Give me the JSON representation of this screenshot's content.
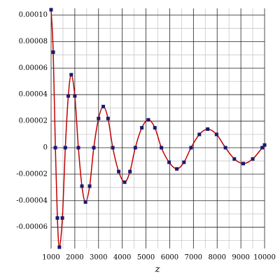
{
  "chart_data": {
    "type": "line",
    "x_label": "z",
    "x": [
      1000,
      1090,
      1180,
      1265,
      1350,
      1475,
      1600,
      1725,
      1850,
      2000,
      2150,
      2300,
      2450,
      2625,
      2800,
      3000,
      3200,
      3400,
      3600,
      3850,
      4100,
      4325,
      4550,
      4825,
      5100,
      5375,
      5650,
      5975,
      6300,
      6600,
      6900,
      7250,
      7600,
      7975,
      8350,
      8725,
      9100,
      9500,
      9900,
      10000
    ],
    "series": [
      {
        "color": "#c00000",
        "marker_color": "#1a1a6e",
        "values": [
          0.000104,
          7.2e-05,
          0,
          -5.3e-05,
          -7.5e-05,
          -5.3e-05,
          0,
          3.9e-05,
          5.5e-05,
          3.9e-05,
          0,
          -2.9e-05,
          -4.1e-05,
          -2.9e-05,
          0,
          2.2e-05,
          3.1e-05,
          2.2e-05,
          0,
          -1.8e-05,
          -2.6e-05,
          -1.8e-05,
          0,
          1.5e-05,
          2.1e-05,
          1.5e-05,
          0,
          -1.1e-05,
          -1.6e-05,
          -1.1e-05,
          0,
          1e-05,
          1.4e-05,
          1e-05,
          0,
          -8.5e-06,
          -1.2e-05,
          -8.5e-06,
          0,
          2e-06
        ]
      }
    ],
    "xlim": [
      1000,
      10000
    ],
    "xticks": [
      1000,
      2000,
      3000,
      4000,
      5000,
      6000,
      7000,
      8000,
      9000,
      10000
    ],
    "ylim": [
      -7.6e-05,
      0.000105
    ],
    "yticks": [
      {
        "value": -6e-05,
        "label": "-0.00006"
      },
      {
        "value": -4e-05,
        "label": "-0.00004"
      },
      {
        "value": -2e-05,
        "label": "-0.00002"
      },
      0,
      {
        "value": 2e-05,
        "label": "0.00002"
      },
      {
        "value": 4e-05,
        "label": "0.00004"
      },
      {
        "value": 6e-05,
        "label": "0.00006"
      },
      {
        "value": 8e-05,
        "label": "0.00008"
      },
      {
        "value": 0.0001,
        "label": "0.00010"
      }
    ],
    "grid": true
  }
}
